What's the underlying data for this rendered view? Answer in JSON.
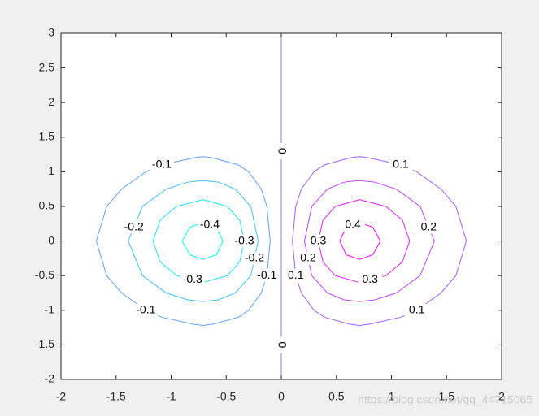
{
  "chart_data": {
    "type": "contour",
    "xlim": [
      -2,
      2
    ],
    "ylim": [
      -2,
      3
    ],
    "xticks": [
      -2,
      -1.5,
      -1,
      -0.5,
      0,
      0.5,
      1,
      1.5,
      2
    ],
    "yticks": [
      -2,
      -1.5,
      -1,
      -0.5,
      0,
      0.5,
      1,
      1.5,
      2,
      2.5,
      3
    ],
    "series": [
      {
        "level": -0.4,
        "color": "#00ffff",
        "x": [
          -0.71,
          -0.83,
          -0.9,
          -0.83,
          -0.71,
          -0.59,
          -0.53,
          -0.59,
          -0.71
        ],
        "y": [
          0.265,
          0.2,
          0,
          -0.2,
          -0.265,
          -0.2,
          0,
          0.2,
          0.265
        ]
      },
      {
        "level": -0.3,
        "color": "#20dfff",
        "x": [
          -0.71,
          -0.95,
          -1.1,
          -1.165,
          -1.1,
          -0.95,
          -0.71,
          -0.49,
          -0.378,
          -0.336,
          -0.378,
          -0.49,
          -0.71
        ],
        "y": [
          0.598,
          0.5,
          0.3,
          0,
          -0.3,
          -0.5,
          -0.598,
          -0.5,
          -0.3,
          0,
          0.3,
          0.5,
          0.598
        ]
      },
      {
        "level": -0.2,
        "color": "#40bfff",
        "x": [
          -0.71,
          -0.85,
          -1.045,
          -1.26,
          -1.39,
          -1.26,
          -1.045,
          -0.85,
          -0.71,
          -0.57,
          -0.418,
          -0.277,
          -0.21,
          -0.277,
          -0.418,
          -0.57,
          -0.71
        ],
        "y": [
          0.874,
          0.85,
          0.75,
          0.5,
          0,
          -0.5,
          -0.75,
          -0.85,
          -0.874,
          -0.85,
          -0.75,
          -0.5,
          0,
          0.5,
          0.75,
          0.85,
          0.874
        ]
      },
      {
        "level": -0.1,
        "color": "#609fff",
        "x": [
          -0.71,
          -0.8,
          -1.085,
          -1.23,
          -1.45,
          -1.585,
          -1.68,
          -1.585,
          -1.45,
          -1.23,
          -1.085,
          -0.8,
          -0.71,
          -0.62,
          -0.39,
          -0.297,
          -0.182,
          -0.131,
          -0.101,
          -0.131,
          -0.182,
          -0.297,
          -0.39,
          -0.62,
          -0.71
        ],
        "y": [
          1.22,
          1.2,
          1.1,
          1,
          0.75,
          0.5,
          0,
          -0.5,
          -0.75,
          -1,
          -1.1,
          -1.2,
          -1.22,
          -1.2,
          -1.1,
          -1,
          -0.75,
          -0.5,
          0,
          0.5,
          0.75,
          1,
          1.1,
          1.2,
          1.22
        ]
      },
      {
        "level": 0,
        "color": "#7f7fff",
        "x": [
          0,
          0
        ],
        "y": [
          3,
          -2
        ]
      },
      {
        "level": 0.1,
        "color": "#9f60ff",
        "x": [
          0.71,
          0.8,
          1.085,
          1.23,
          1.45,
          1.585,
          1.68,
          1.585,
          1.45,
          1.23,
          1.085,
          0.8,
          0.71,
          0.62,
          0.39,
          0.297,
          0.182,
          0.131,
          0.101,
          0.131,
          0.182,
          0.297,
          0.39,
          0.62,
          0.71
        ],
        "y": [
          1.22,
          1.2,
          1.1,
          1,
          0.75,
          0.5,
          0,
          -0.5,
          -0.75,
          -1,
          -1.1,
          -1.2,
          -1.22,
          -1.2,
          -1.1,
          -1,
          -0.75,
          -0.5,
          0,
          0.5,
          0.75,
          1,
          1.1,
          1.2,
          1.22
        ]
      },
      {
        "level": 0.2,
        "color": "#bf40ff",
        "x": [
          0.71,
          0.85,
          1.045,
          1.26,
          1.39,
          1.26,
          1.045,
          0.85,
          0.71,
          0.57,
          0.418,
          0.277,
          0.21,
          0.277,
          0.418,
          0.57,
          0.71
        ],
        "y": [
          0.874,
          0.85,
          0.75,
          0.5,
          0,
          -0.5,
          -0.75,
          -0.85,
          -0.874,
          -0.85,
          -0.75,
          -0.5,
          0,
          0.5,
          0.75,
          0.85,
          0.874
        ]
      },
      {
        "level": 0.3,
        "color": "#df20ff",
        "x": [
          0.71,
          0.95,
          1.1,
          1.165,
          1.1,
          0.95,
          0.71,
          0.49,
          0.378,
          0.336,
          0.378,
          0.49,
          0.71
        ],
        "y": [
          0.598,
          0.5,
          0.3,
          0,
          -0.3,
          -0.5,
          -0.598,
          -0.5,
          -0.3,
          0,
          0.3,
          0.5,
          0.598
        ]
      },
      {
        "level": 0.4,
        "color": "#ff00ff",
        "x": [
          0.71,
          0.83,
          0.9,
          0.83,
          0.71,
          0.59,
          0.53,
          0.59,
          0.71
        ],
        "y": [
          0.265,
          0.2,
          0,
          -0.2,
          -0.265,
          -0.2,
          0,
          0.2,
          0.265
        ]
      }
    ],
    "watermark": "https://blog.csdn.net/qq_44715065"
  }
}
